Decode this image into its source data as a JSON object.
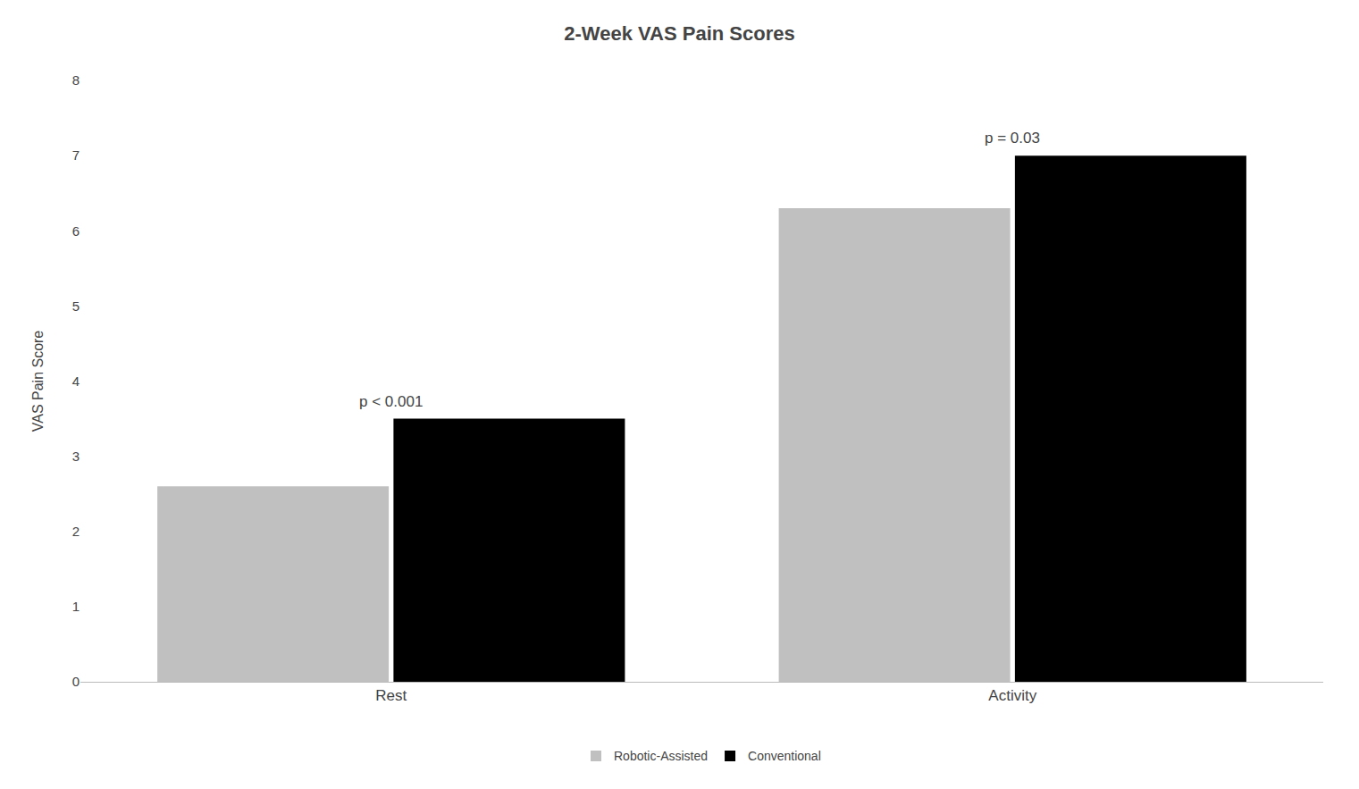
{
  "chart_data": {
    "type": "bar",
    "title": "2-Week VAS Pain Scores",
    "ylabel": "VAS Pain Score",
    "categories": [
      "Rest",
      "Activity"
    ],
    "series": [
      {
        "name": "Robotic-Assisted",
        "color": "#C0C0C0",
        "values": [
          2.6,
          6.3
        ]
      },
      {
        "name": "Conventional",
        "color": "#000000",
        "values": [
          3.5,
          7.0
        ]
      }
    ],
    "annotations": [
      "p < 0.001",
      "p = 0.03"
    ],
    "ylim": [
      0,
      8
    ],
    "yticks": [
      0,
      1,
      2,
      3,
      4,
      5,
      6,
      7,
      8
    ],
    "grid": false,
    "legend": "bottom"
  }
}
